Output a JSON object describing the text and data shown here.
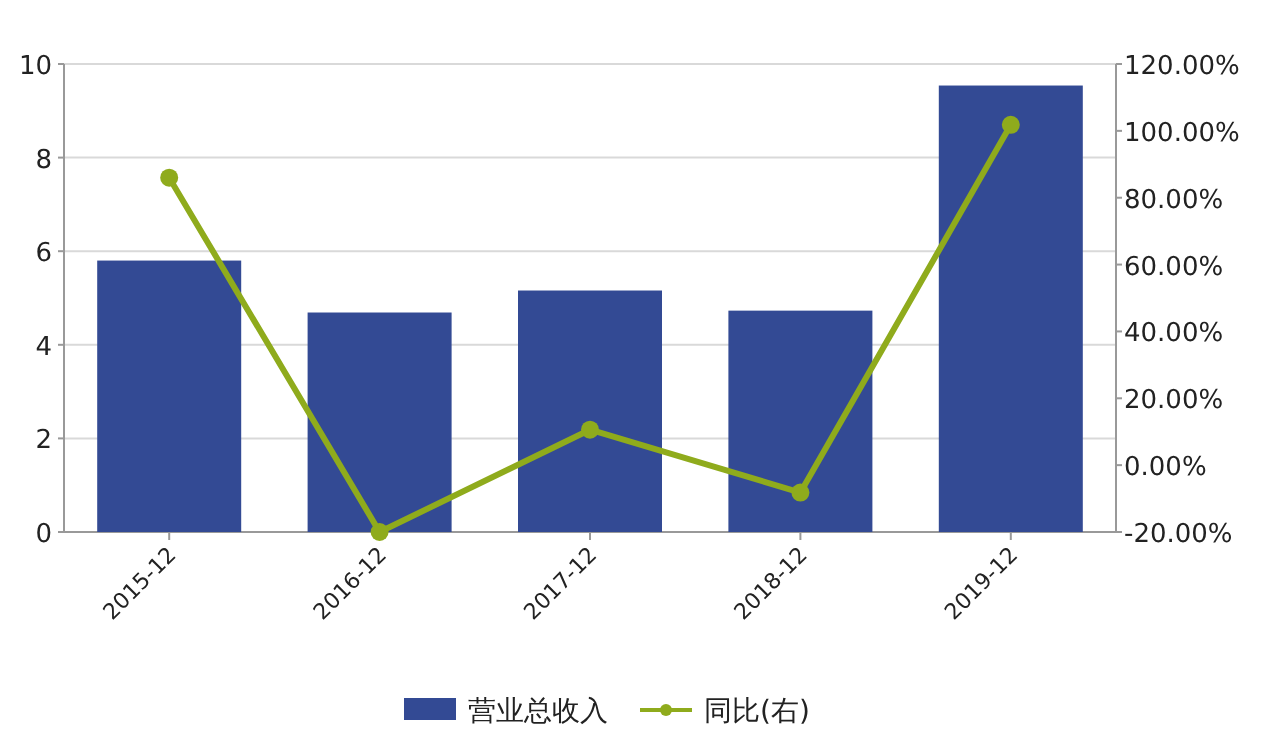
{
  "chart_data": {
    "type": "bar",
    "categories": [
      "2015-12",
      "2016-12",
      "2017-12",
      "2018-12",
      "2019-12"
    ],
    "series": [
      {
        "name": "营业总收入",
        "color": "#334a94",
        "values": [
          5.8,
          4.69,
          5.16,
          4.73,
          9.54
        ]
      },
      {
        "name": "同比(右)",
        "type": "line",
        "axis": "y2",
        "color": "#8fab1c",
        "marker": "circle",
        "values": [
          86,
          -20,
          10.6,
          -8.2,
          101.8
        ]
      }
    ],
    "ylim": [
      0,
      10
    ],
    "yticks": [
      0,
      2,
      4,
      6,
      8,
      10
    ],
    "y2lim": [
      -20,
      120
    ],
    "y2ticks": [
      {
        "value": -20,
        "label": "-20.00%"
      },
      {
        "value": 0,
        "label": "0.00%"
      },
      {
        "value": 20,
        "label": "20.00%"
      },
      {
        "value": 40,
        "label": "40.00%"
      },
      {
        "value": 60,
        "label": "60.00%"
      },
      {
        "value": 80,
        "label": "80.00%"
      },
      {
        "value": 100,
        "label": "100.00%"
      },
      {
        "value": 120,
        "label": "120.00%"
      }
    ],
    "grid": "y",
    "legend": "bottom"
  }
}
